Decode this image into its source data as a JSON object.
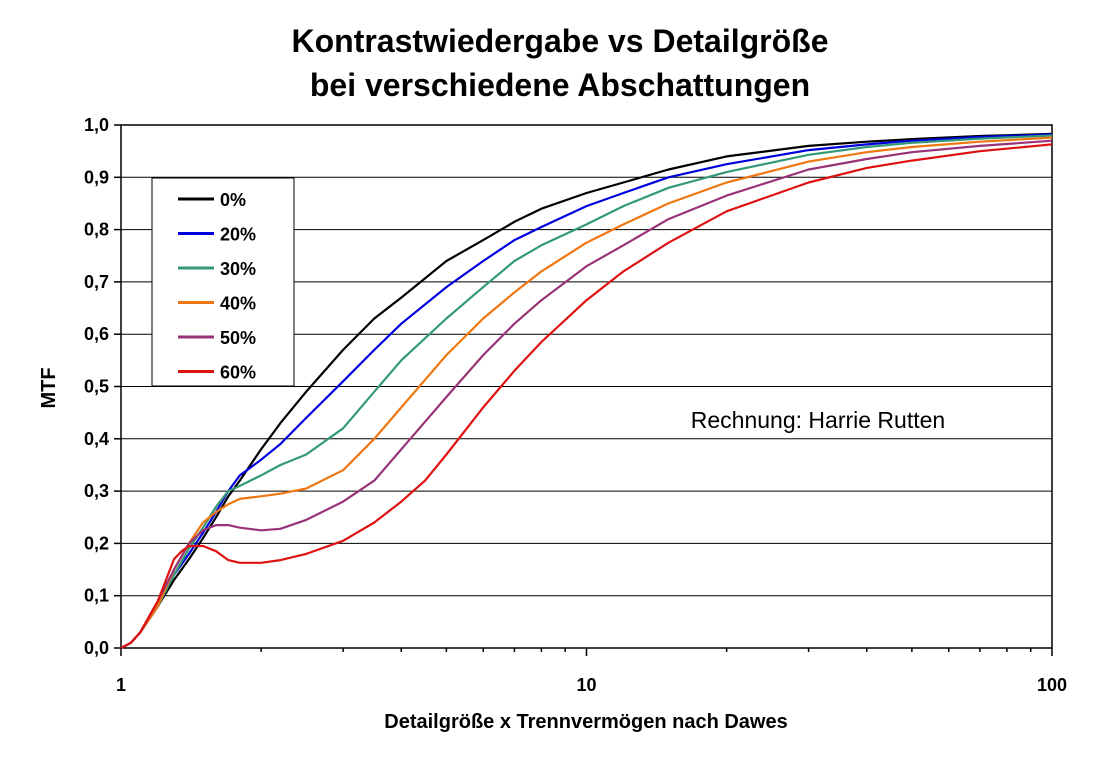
{
  "chart_data": {
    "type": "line",
    "title_line1": "Kontrastwiedergabe vs Detailgröße",
    "title_line2": "bei verschiedene Abschattungen",
    "xlabel": "Detailgröße x Trennvermögen nach Dawes",
    "ylabel": "MTF",
    "x_scale": "log",
    "xlim": [
      1,
      100
    ],
    "ylim": [
      0,
      1
    ],
    "x_ticks": [
      1,
      10,
      100
    ],
    "x_tick_labels": [
      "1",
      "10",
      "100"
    ],
    "y_ticks": [
      0,
      0.1,
      0.2,
      0.3,
      0.4,
      0.5,
      0.6,
      0.7,
      0.8,
      0.9,
      1.0
    ],
    "y_tick_labels": [
      "0,0",
      "0,1",
      "0,2",
      "0,3",
      "0,4",
      "0,5",
      "0,6",
      "0,7",
      "0,8",
      "0,9",
      "1,0"
    ],
    "grid": "horizontal",
    "legend_position": "top-left",
    "annotation": "Rechnung: Harrie Rutten",
    "series": [
      {
        "name": "0%",
        "color": "#000000",
        "points": [
          [
            1.0,
            0
          ],
          [
            1.05,
            0.01
          ],
          [
            1.1,
            0.03
          ],
          [
            1.2,
            0.08
          ],
          [
            1.3,
            0.13
          ],
          [
            1.4,
            0.17
          ],
          [
            1.5,
            0.21
          ],
          [
            1.6,
            0.25
          ],
          [
            1.7,
            0.29
          ],
          [
            1.8,
            0.32
          ],
          [
            2.0,
            0.38
          ],
          [
            2.2,
            0.43
          ],
          [
            2.5,
            0.49
          ],
          [
            3.0,
            0.57
          ],
          [
            3.5,
            0.63
          ],
          [
            4.0,
            0.67
          ],
          [
            5.0,
            0.74
          ],
          [
            6.0,
            0.78
          ],
          [
            7.0,
            0.815
          ],
          [
            8.0,
            0.84
          ],
          [
            10,
            0.87
          ],
          [
            12,
            0.89
          ],
          [
            15,
            0.915
          ],
          [
            20,
            0.94
          ],
          [
            30,
            0.96
          ],
          [
            40,
            0.968
          ],
          [
            50,
            0.973
          ],
          [
            70,
            0.979
          ],
          [
            100,
            0.983
          ]
        ]
      },
      {
        "name": "20%",
        "color": "#0000dd",
        "points": [
          [
            1.0,
            0
          ],
          [
            1.05,
            0.01
          ],
          [
            1.1,
            0.03
          ],
          [
            1.2,
            0.08
          ],
          [
            1.3,
            0.14
          ],
          [
            1.4,
            0.18
          ],
          [
            1.5,
            0.22
          ],
          [
            1.6,
            0.26
          ],
          [
            1.7,
            0.3
          ],
          [
            1.8,
            0.33
          ],
          [
            2.0,
            0.36
          ],
          [
            2.2,
            0.39
          ],
          [
            2.5,
            0.44
          ],
          [
            3.0,
            0.51
          ],
          [
            3.5,
            0.57
          ],
          [
            4.0,
            0.62
          ],
          [
            5.0,
            0.69
          ],
          [
            6.0,
            0.74
          ],
          [
            7.0,
            0.78
          ],
          [
            8.0,
            0.805
          ],
          [
            10,
            0.845
          ],
          [
            12,
            0.87
          ],
          [
            15,
            0.9
          ],
          [
            20,
            0.925
          ],
          [
            30,
            0.952
          ],
          [
            40,
            0.963
          ],
          [
            50,
            0.97
          ],
          [
            70,
            0.977
          ],
          [
            100,
            0.982
          ]
        ]
      },
      {
        "name": "30%",
        "color": "#339977",
        "points": [
          [
            1.0,
            0
          ],
          [
            1.05,
            0.01
          ],
          [
            1.1,
            0.03
          ],
          [
            1.2,
            0.08
          ],
          [
            1.3,
            0.14
          ],
          [
            1.4,
            0.19
          ],
          [
            1.5,
            0.23
          ],
          [
            1.6,
            0.27
          ],
          [
            1.7,
            0.3
          ],
          [
            1.8,
            0.31
          ],
          [
            2.0,
            0.33
          ],
          [
            2.2,
            0.35
          ],
          [
            2.5,
            0.37
          ],
          [
            3.0,
            0.42
          ],
          [
            3.5,
            0.49
          ],
          [
            4.0,
            0.55
          ],
          [
            5.0,
            0.63
          ],
          [
            6.0,
            0.69
          ],
          [
            7.0,
            0.74
          ],
          [
            8.0,
            0.77
          ],
          [
            10,
            0.81
          ],
          [
            12,
            0.845
          ],
          [
            15,
            0.88
          ],
          [
            20,
            0.91
          ],
          [
            30,
            0.943
          ],
          [
            40,
            0.958
          ],
          [
            50,
            0.966
          ],
          [
            70,
            0.974
          ],
          [
            100,
            0.98
          ]
        ]
      },
      {
        "name": "40%",
        "color": "#ee7711",
        "points": [
          [
            1.0,
            0
          ],
          [
            1.05,
            0.01
          ],
          [
            1.1,
            0.03
          ],
          [
            1.2,
            0.08
          ],
          [
            1.3,
            0.15
          ],
          [
            1.4,
            0.2
          ],
          [
            1.5,
            0.24
          ],
          [
            1.6,
            0.26
          ],
          [
            1.7,
            0.275
          ],
          [
            1.8,
            0.285
          ],
          [
            2.0,
            0.29
          ],
          [
            2.2,
            0.295
          ],
          [
            2.5,
            0.305
          ],
          [
            3.0,
            0.34
          ],
          [
            3.5,
            0.4
          ],
          [
            4.0,
            0.46
          ],
          [
            5.0,
            0.56
          ],
          [
            6.0,
            0.63
          ],
          [
            7.0,
            0.68
          ],
          [
            8.0,
            0.72
          ],
          [
            10,
            0.775
          ],
          [
            12,
            0.81
          ],
          [
            15,
            0.85
          ],
          [
            20,
            0.89
          ],
          [
            30,
            0.93
          ],
          [
            40,
            0.948
          ],
          [
            50,
            0.958
          ],
          [
            70,
            0.968
          ],
          [
            100,
            0.976
          ]
        ]
      },
      {
        "name": "50%",
        "color": "#993377",
        "points": [
          [
            1.0,
            0
          ],
          [
            1.05,
            0.01
          ],
          [
            1.1,
            0.03
          ],
          [
            1.2,
            0.09
          ],
          [
            1.3,
            0.15
          ],
          [
            1.4,
            0.2
          ],
          [
            1.5,
            0.225
          ],
          [
            1.6,
            0.235
          ],
          [
            1.7,
            0.235
          ],
          [
            1.8,
            0.23
          ],
          [
            2.0,
            0.225
          ],
          [
            2.2,
            0.228
          ],
          [
            2.5,
            0.245
          ],
          [
            3.0,
            0.28
          ],
          [
            3.5,
            0.32
          ],
          [
            4.0,
            0.38
          ],
          [
            5.0,
            0.48
          ],
          [
            6.0,
            0.56
          ],
          [
            7.0,
            0.62
          ],
          [
            8.0,
            0.665
          ],
          [
            10,
            0.73
          ],
          [
            12,
            0.77
          ],
          [
            15,
            0.82
          ],
          [
            20,
            0.865
          ],
          [
            30,
            0.915
          ],
          [
            40,
            0.935
          ],
          [
            50,
            0.948
          ],
          [
            70,
            0.96
          ],
          [
            100,
            0.97
          ]
        ]
      },
      {
        "name": "60%",
        "color": "#dd1111",
        "points": [
          [
            1.0,
            0
          ],
          [
            1.05,
            0.01
          ],
          [
            1.1,
            0.03
          ],
          [
            1.2,
            0.09
          ],
          [
            1.3,
            0.17
          ],
          [
            1.35,
            0.185
          ],
          [
            1.4,
            0.195
          ],
          [
            1.5,
            0.195
          ],
          [
            1.6,
            0.185
          ],
          [
            1.7,
            0.168
          ],
          [
            1.8,
            0.163
          ],
          [
            2.0,
            0.163
          ],
          [
            2.2,
            0.168
          ],
          [
            2.5,
            0.18
          ],
          [
            3.0,
            0.205
          ],
          [
            3.5,
            0.24
          ],
          [
            4.0,
            0.28
          ],
          [
            4.5,
            0.32
          ],
          [
            5.0,
            0.37
          ],
          [
            6.0,
            0.46
          ],
          [
            7.0,
            0.53
          ],
          [
            8.0,
            0.585
          ],
          [
            10,
            0.665
          ],
          [
            12,
            0.72
          ],
          [
            15,
            0.775
          ],
          [
            20,
            0.835
          ],
          [
            30,
            0.89
          ],
          [
            40,
            0.918
          ],
          [
            50,
            0.932
          ],
          [
            70,
            0.95
          ],
          [
            100,
            0.963
          ]
        ]
      }
    ]
  }
}
